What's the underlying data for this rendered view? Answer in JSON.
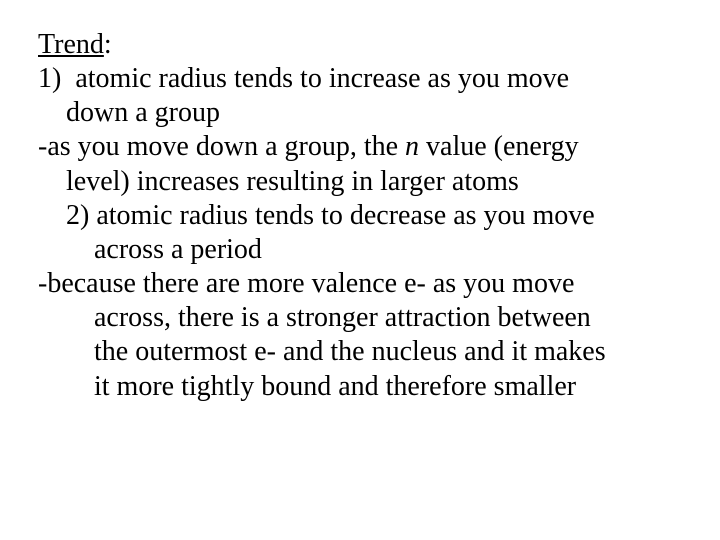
{
  "heading": "Trend",
  "heading_suffix": ":",
  "item1_num": "1)",
  "item1_line1": "atomic radius tends to increase as you move",
  "item1_line2": "down a group",
  "exp1_line1a": "-as you move down a group, the ",
  "exp1_n": "n",
  "exp1_line1b": " value (energy",
  "exp1_line2": "level) increases resulting in larger atoms",
  "item2_num": "2)",
  "item2_line1": "atomic radius tends to decrease as you move",
  "item2_line2": "across a period",
  "exp2_line1": "-because there are more valence e- as you move",
  "exp2_line2": "across, there is a stronger attraction between",
  "exp2_line3": "the outermost e- and the nucleus and it makes",
  "exp2_line4": "it more tightly bound and therefore smaller",
  "colors": {
    "background": "#ffffff",
    "text": "#000000"
  },
  "typography": {
    "font_family": "Times New Roman",
    "font_size_pt": 21,
    "line_height": 1.22
  }
}
